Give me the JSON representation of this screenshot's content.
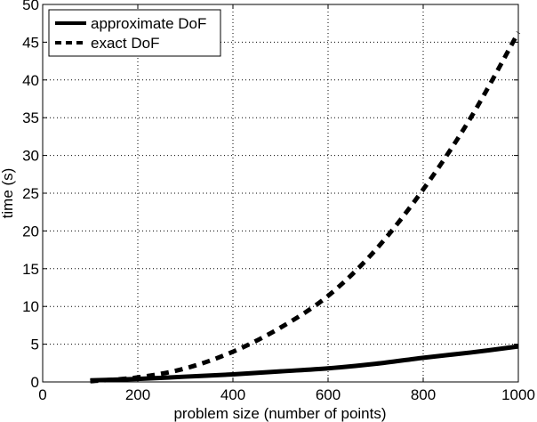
{
  "chart_data": {
    "type": "line",
    "title": "",
    "xlabel": "problem size (number of points)",
    "ylabel": "time (s)",
    "xlim": [
      0,
      1000
    ],
    "ylim": [
      0,
      50
    ],
    "xticks": [
      0,
      200,
      400,
      600,
      800,
      1000
    ],
    "yticks": [
      0,
      5,
      10,
      15,
      20,
      25,
      30,
      35,
      40,
      45,
      50
    ],
    "grid": true,
    "legend_position": "upper left",
    "x": [
      100,
      200,
      300,
      400,
      500,
      600,
      700,
      800,
      900,
      1000
    ],
    "series": [
      {
        "name": "approximate DoF",
        "style": "solid",
        "color": "#000000",
        "values": [
          0.2,
          0.4,
          0.7,
          1.0,
          1.4,
          1.8,
          2.4,
          3.2,
          3.9,
          4.7
        ]
      },
      {
        "name": "exact DoF",
        "style": "dashed",
        "color": "#000000",
        "values": [
          0.1,
          0.6,
          1.8,
          4.0,
          7.2,
          11.4,
          17.5,
          25.5,
          35.0,
          46.3
        ]
      }
    ]
  }
}
